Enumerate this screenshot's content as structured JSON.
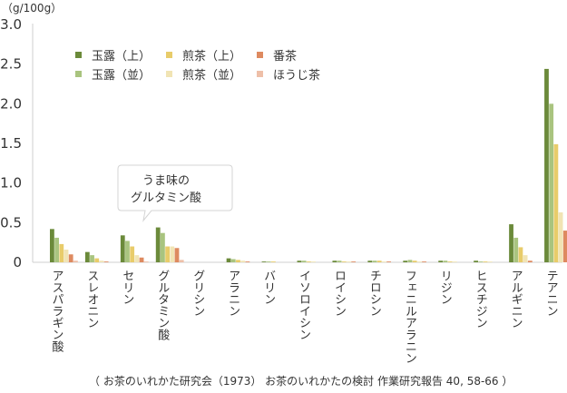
{
  "chart_data": {
    "type": "bar",
    "unit": "（g/100g）",
    "ylim": [
      0,
      3.0
    ],
    "yticks": [
      "0",
      "0.5",
      "1.0",
      "1.5",
      "2.0",
      "2.5",
      "3.0"
    ],
    "categories": [
      "アスパラギン酸",
      "スレオニン",
      "セリン",
      "グルタミン酸",
      "グリシン",
      "アラニン",
      "バリン",
      "イソロイシン",
      "ロイシン",
      "チロシン",
      "フェニルアラニン",
      "リジン",
      "ヒスチジン",
      "アルギニン",
      "テアニン"
    ],
    "series": [
      {
        "name": "玉露（上）",
        "color": "#6b8a3a",
        "values": [
          0.42,
          0.13,
          0.34,
          0.44,
          0.0,
          0.05,
          0.01,
          0.02,
          0.02,
          0.02,
          0.02,
          0.02,
          0.02,
          0.48,
          2.44
        ]
      },
      {
        "name": "玉露（並）",
        "color": "#a9c47f",
        "values": [
          0.31,
          0.09,
          0.27,
          0.37,
          0.0,
          0.04,
          0.01,
          0.02,
          0.02,
          0.02,
          0.03,
          0.02,
          0.01,
          0.31,
          2.0
        ]
      },
      {
        "name": "煎茶（上）",
        "color": "#e8cc6a",
        "values": [
          0.23,
          0.05,
          0.2,
          0.2,
          0.0,
          0.03,
          0.01,
          0.01,
          0.01,
          0.02,
          0.02,
          0.01,
          0.01,
          0.19,
          1.49
        ]
      },
      {
        "name": "煎茶（並）",
        "color": "#f1e4b4",
        "values": [
          0.16,
          0.02,
          0.09,
          0.2,
          0.0,
          0.02,
          0.0,
          0.01,
          0.01,
          0.01,
          0.01,
          0.01,
          0.01,
          0.09,
          0.63
        ]
      },
      {
        "name": "番茶",
        "color": "#de8a60",
        "values": [
          0.1,
          0.01,
          0.06,
          0.18,
          0.0,
          0.01,
          0.0,
          0.0,
          0.01,
          0.01,
          0.01,
          0.0,
          0.0,
          0.02,
          0.4
        ]
      },
      {
        "name": "ほうじ茶",
        "color": "#eebfa8",
        "values": [
          0.02,
          0.0,
          0.01,
          0.03,
          0.0,
          0.0,
          0.0,
          0.0,
          0.0,
          0.0,
          0.0,
          0.0,
          0.0,
          0.0,
          0.02
        ]
      }
    ],
    "annotation": {
      "line1": "うま味の",
      "line2": "グルタミン酸",
      "target_category": "グルタミン酸"
    },
    "legend_position": "top-left",
    "grid": false
  },
  "source_note": "（ お茶のいれかた研究会（1973） お茶のいれかたの検討 作業研究報告 40, 58-66 ）"
}
